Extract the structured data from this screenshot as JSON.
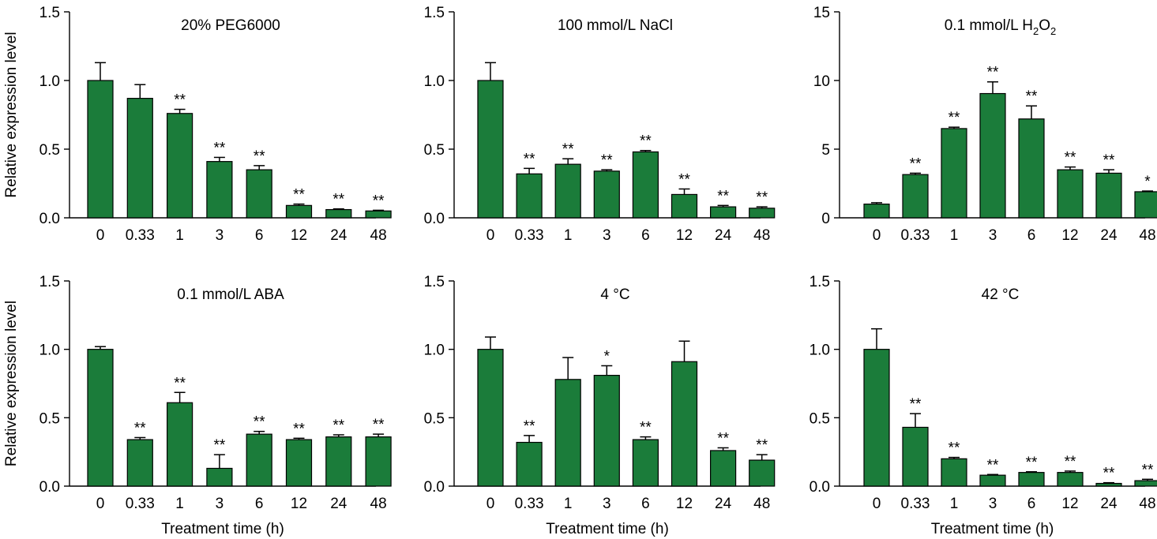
{
  "colors": {
    "bar": "#1b7c3a",
    "axis": "#000000"
  },
  "chart_data": [
    {
      "type": "bar",
      "title": "20% PEG6000",
      "xlabel": "",
      "ylabel": "Relative expression level",
      "categories": [
        "0",
        "0.33",
        "1",
        "3",
        "6",
        "12",
        "24",
        "48"
      ],
      "values": [
        1.0,
        0.87,
        0.76,
        0.41,
        0.35,
        0.09,
        0.06,
        0.05
      ],
      "errors": [
        0.13,
        0.1,
        0.03,
        0.03,
        0.03,
        0.01,
        0.005,
        0.005
      ],
      "significance": [
        "",
        "",
        "**",
        "**",
        "**",
        "**",
        "**",
        "**"
      ],
      "ylim": [
        0,
        1.5
      ],
      "yticks": [
        "0.0",
        "0.5",
        "1.0",
        "1.5"
      ]
    },
    {
      "type": "bar",
      "title": "100 mmol/L NaCl",
      "xlabel": "",
      "ylabel": "",
      "categories": [
        "0",
        "0.33",
        "1",
        "3",
        "6",
        "12",
        "24",
        "48"
      ],
      "values": [
        1.0,
        0.32,
        0.39,
        0.34,
        0.48,
        0.17,
        0.08,
        0.07
      ],
      "errors": [
        0.13,
        0.04,
        0.04,
        0.01,
        0.01,
        0.04,
        0.01,
        0.01
      ],
      "significance": [
        "",
        "**",
        "**",
        "**",
        "**",
        "**",
        "**",
        "**"
      ],
      "ylim": [
        0,
        1.5
      ],
      "yticks": [
        "0.0",
        "0.5",
        "1.0",
        "1.5"
      ]
    },
    {
      "type": "bar",
      "title": "0.1 mmol/L H₂O₂",
      "xlabel": "",
      "ylabel": "",
      "categories": [
        "0",
        "0.33",
        "1",
        "3",
        "6",
        "12",
        "24",
        "48"
      ],
      "values": [
        1.0,
        3.15,
        6.5,
        9.05,
        7.2,
        3.5,
        3.25,
        1.9
      ],
      "errors": [
        0.1,
        0.1,
        0.1,
        0.85,
        0.95,
        0.2,
        0.25,
        0.05
      ],
      "significance": [
        "",
        "**",
        "**",
        "**",
        "**",
        "**",
        "**",
        "*"
      ],
      "ylim": [
        0,
        15
      ],
      "yticks": [
        "0",
        "5",
        "10",
        "15"
      ]
    },
    {
      "type": "bar",
      "title": "0.1 mmol/L ABA",
      "xlabel": "Treatment time (h)",
      "ylabel": "Relative expression level",
      "categories": [
        "0",
        "0.33",
        "1",
        "3",
        "6",
        "12",
        "24",
        "48"
      ],
      "values": [
        1.0,
        0.34,
        0.61,
        0.13,
        0.38,
        0.34,
        0.36,
        0.36
      ],
      "errors": [
        0.02,
        0.015,
        0.075,
        0.1,
        0.02,
        0.01,
        0.015,
        0.02
      ],
      "significance": [
        "",
        "**",
        "**",
        "**",
        "**",
        "**",
        "**",
        "**"
      ],
      "ylim": [
        0,
        1.5
      ],
      "yticks": [
        "0.0",
        "0.5",
        "1.0",
        "1.5"
      ]
    },
    {
      "type": "bar",
      "title": "4 °C",
      "xlabel": "Treatment time (h)",
      "ylabel": "",
      "categories": [
        "0",
        "0.33",
        "1",
        "3",
        "6",
        "12",
        "24",
        "48"
      ],
      "values": [
        1.0,
        0.32,
        0.78,
        0.81,
        0.34,
        0.91,
        0.26,
        0.19
      ],
      "errors": [
        0.09,
        0.05,
        0.16,
        0.07,
        0.02,
        0.15,
        0.02,
        0.04
      ],
      "significance": [
        "",
        "**",
        "",
        "*",
        "**",
        "",
        "**",
        "**"
      ],
      "ylim": [
        0,
        1.5
      ],
      "yticks": [
        "0.0",
        "0.5",
        "1.0",
        "1.5"
      ]
    },
    {
      "type": "bar",
      "title": "42 °C",
      "xlabel": "Treatment time (h)",
      "ylabel": "",
      "categories": [
        "0",
        "0.33",
        "1",
        "3",
        "6",
        "12",
        "24",
        "48"
      ],
      "values": [
        1.0,
        0.43,
        0.2,
        0.08,
        0.1,
        0.1,
        0.02,
        0.04
      ],
      "errors": [
        0.15,
        0.1,
        0.01,
        0.005,
        0.005,
        0.01,
        0.005,
        0.01
      ],
      "significance": [
        "",
        "**",
        "**",
        "**",
        "**",
        "**",
        "**",
        "**"
      ],
      "ylim": [
        0,
        1.5
      ],
      "yticks": [
        "0.0",
        "0.5",
        "1.0",
        "1.5"
      ]
    }
  ]
}
